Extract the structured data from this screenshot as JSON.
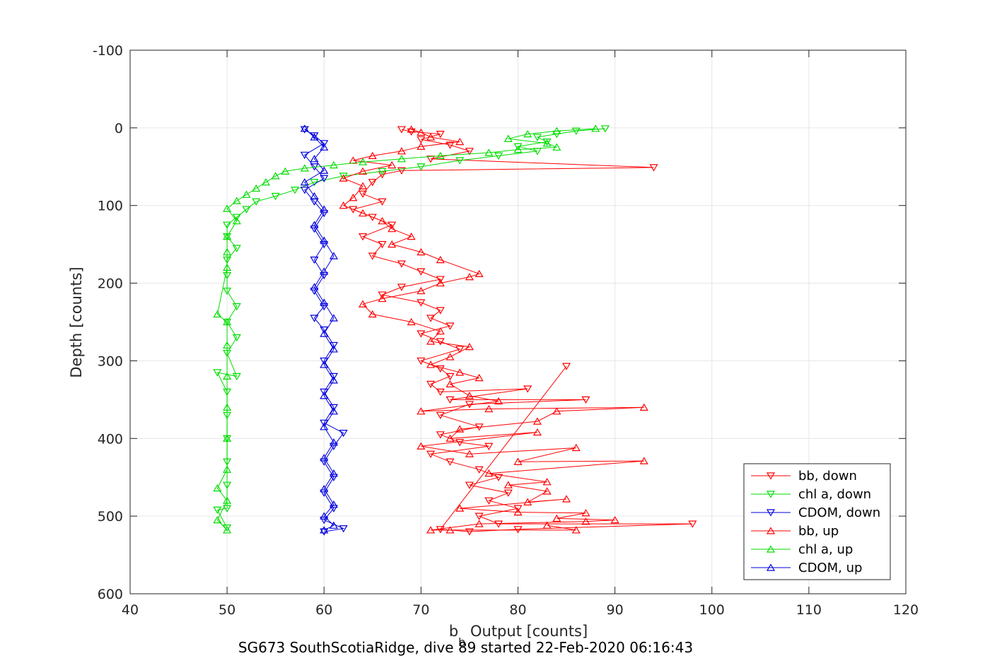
{
  "chart_data": {
    "type": "scatter",
    "title": "",
    "xlabel_main": "b",
    "xlabel_sub": "b",
    "xlabel_rest": " Output [counts]",
    "ylabel": "Depth [counts]",
    "caption": "SG673 SouthScotiaRidge, dive 89 started 22-Feb-2020 06:16:43",
    "xlim": [
      40,
      120
    ],
    "ylim": [
      -100,
      600
    ],
    "y_reversed": true,
    "grid": true,
    "x_ticks": [
      "40",
      "50",
      "60",
      "70",
      "80",
      "90",
      "100",
      "110",
      "120"
    ],
    "y_ticks": [
      "-100",
      "0",
      "100",
      "200",
      "300",
      "400",
      "500",
      "600"
    ],
    "legend_position": "bottom-right",
    "series": [
      {
        "name": "bb, down",
        "color": "#ff0000",
        "marker": "triangle-down",
        "points": [
          [
            68,
            2
          ],
          [
            69,
            5
          ],
          [
            72,
            8
          ],
          [
            70,
            15
          ],
          [
            73,
            22
          ],
          [
            75,
            30
          ],
          [
            71,
            40
          ],
          [
            94,
            51
          ],
          [
            68,
            55
          ],
          [
            66,
            60
          ],
          [
            65,
            70
          ],
          [
            64,
            85
          ],
          [
            66,
            95
          ],
          [
            63,
            105
          ],
          [
            65,
            115
          ],
          [
            67,
            125
          ],
          [
            64,
            140
          ],
          [
            66,
            150
          ],
          [
            65,
            165
          ],
          [
            68,
            175
          ],
          [
            70,
            185
          ],
          [
            72,
            195
          ],
          [
            68,
            205
          ],
          [
            66,
            215
          ],
          [
            70,
            225
          ],
          [
            72,
            235
          ],
          [
            71,
            245
          ],
          [
            73,
            255
          ],
          [
            70,
            265
          ],
          [
            72,
            275
          ],
          [
            74,
            285
          ],
          [
            70,
            300
          ],
          [
            72,
            310
          ],
          [
            73,
            320
          ],
          [
            71,
            330
          ],
          [
            72,
            340
          ],
          [
            81,
            336
          ],
          [
            73,
            350
          ],
          [
            87,
            350
          ],
          [
            75,
            356
          ],
          [
            72,
            370
          ],
          [
            76,
            385
          ],
          [
            72,
            395
          ],
          [
            74,
            405
          ],
          [
            77,
            410
          ],
          [
            71,
            420
          ],
          [
            73,
            430
          ],
          [
            76,
            440
          ],
          [
            78,
            450
          ],
          [
            75,
            460
          ],
          [
            79,
            470
          ],
          [
            77,
            480
          ],
          [
            80,
            490
          ],
          [
            76,
            500
          ],
          [
            78,
            510
          ],
          [
            98,
            510
          ],
          [
            80,
            517
          ],
          [
            75,
            520
          ],
          [
            72,
            517
          ],
          [
            85,
            307
          ]
        ]
      },
      {
        "name": "chl a, down",
        "color": "#00dd00",
        "marker": "triangle-down",
        "points": [
          [
            89,
            1
          ],
          [
            86,
            4
          ],
          [
            84,
            8
          ],
          [
            82,
            12
          ],
          [
            83,
            18
          ],
          [
            80,
            24
          ],
          [
            82,
            30
          ],
          [
            78,
            36
          ],
          [
            74,
            42
          ],
          [
            70,
            50
          ],
          [
            66,
            56
          ],
          [
            62,
            62
          ],
          [
            59,
            70
          ],
          [
            57,
            80
          ],
          [
            55,
            88
          ],
          [
            53,
            95
          ],
          [
            52,
            105
          ],
          [
            51,
            115
          ],
          [
            50,
            125
          ],
          [
            50,
            140
          ],
          [
            51,
            155
          ],
          [
            50,
            170
          ],
          [
            50,
            190
          ],
          [
            50,
            210
          ],
          [
            51,
            230
          ],
          [
            50,
            250
          ],
          [
            51,
            270
          ],
          [
            50,
            290
          ],
          [
            51,
            320
          ],
          [
            49,
            315
          ],
          [
            50,
            340
          ],
          [
            50,
            370
          ],
          [
            50,
            400
          ],
          [
            50,
            430
          ],
          [
            50,
            460
          ],
          [
            50,
            490
          ],
          [
            49,
            492
          ],
          [
            50,
            515
          ]
        ]
      },
      {
        "name": "CDOM, down",
        "color": "#0000dd",
        "marker": "triangle-down",
        "points": [
          [
            58,
            2
          ],
          [
            59,
            10
          ],
          [
            60,
            20
          ],
          [
            58,
            35
          ],
          [
            59,
            50
          ],
          [
            60,
            65
          ],
          [
            58,
            80
          ],
          [
            59,
            95
          ],
          [
            60,
            110
          ],
          [
            59,
            130
          ],
          [
            60,
            150
          ],
          [
            59,
            170
          ],
          [
            60,
            190
          ],
          [
            59,
            210
          ],
          [
            60,
            230
          ],
          [
            59,
            245
          ],
          [
            60,
            260
          ],
          [
            61,
            280
          ],
          [
            60,
            300
          ],
          [
            61,
            320
          ],
          [
            60,
            340
          ],
          [
            61,
            360
          ],
          [
            60,
            380
          ],
          [
            62,
            393
          ],
          [
            61,
            410
          ],
          [
            60,
            430
          ],
          [
            61,
            450
          ],
          [
            60,
            470
          ],
          [
            61,
            490
          ],
          [
            60,
            505
          ],
          [
            62,
            516
          ],
          [
            60,
            520
          ]
        ]
      },
      {
        "name": "bb, up",
        "color": "#ff0000",
        "marker": "triangle-up",
        "points": [
          [
            69,
            2
          ],
          [
            70,
            6
          ],
          [
            71,
            12
          ],
          [
            74,
            18
          ],
          [
            70,
            24
          ],
          [
            68,
            30
          ],
          [
            65,
            36
          ],
          [
            63,
            42
          ],
          [
            67,
            48
          ],
          [
            64,
            56
          ],
          [
            62,
            65
          ],
          [
            64,
            75
          ],
          [
            63,
            90
          ],
          [
            62,
            100
          ],
          [
            64,
            110
          ],
          [
            66,
            120
          ],
          [
            67,
            130
          ],
          [
            69,
            140
          ],
          [
            67,
            150
          ],
          [
            70,
            160
          ],
          [
            72,
            170
          ],
          [
            76,
            188
          ],
          [
            75,
            192
          ],
          [
            72,
            200
          ],
          [
            70,
            210
          ],
          [
            66,
            220
          ],
          [
            64,
            227
          ],
          [
            65,
            240
          ],
          [
            69,
            250
          ],
          [
            72,
            262
          ],
          [
            71,
            275
          ],
          [
            75,
            282
          ],
          [
            73,
            295
          ],
          [
            71,
            305
          ],
          [
            74,
            315
          ],
          [
            76,
            322
          ],
          [
            73,
            330
          ],
          [
            75,
            345
          ],
          [
            78,
            352
          ],
          [
            70,
            365
          ],
          [
            77,
            362
          ],
          [
            93,
            360
          ],
          [
            84,
            365
          ],
          [
            82,
            378
          ],
          [
            74,
            388
          ],
          [
            73,
            400
          ],
          [
            82,
            392
          ],
          [
            70,
            410
          ],
          [
            75,
            420
          ],
          [
            86,
            412
          ],
          [
            80,
            430
          ],
          [
            93,
            429
          ],
          [
            77,
            445
          ],
          [
            83,
            456
          ],
          [
            79,
            460
          ],
          [
            83,
            468
          ],
          [
            81,
            482
          ],
          [
            85,
            478
          ],
          [
            74,
            490
          ],
          [
            80,
            495
          ],
          [
            87,
            496
          ],
          [
            84,
            503
          ],
          [
            90,
            505
          ],
          [
            87,
            507
          ],
          [
            76,
            510
          ],
          [
            71,
            518
          ],
          [
            73,
            518
          ],
          [
            86,
            518
          ],
          [
            83,
            512
          ]
        ]
      },
      {
        "name": "chl a, up",
        "color": "#00dd00",
        "marker": "triangle-up",
        "points": [
          [
            88,
            1
          ],
          [
            84,
            4
          ],
          [
            81,
            8
          ],
          [
            79,
            14
          ],
          [
            83,
            20
          ],
          [
            84,
            25
          ],
          [
            80,
            28
          ],
          [
            77,
            32
          ],
          [
            72,
            36
          ],
          [
            68,
            40
          ],
          [
            64,
            44
          ],
          [
            61,
            48
          ],
          [
            58,
            52
          ],
          [
            56,
            56
          ],
          [
            55,
            62
          ],
          [
            54,
            70
          ],
          [
            53,
            78
          ],
          [
            52,
            86
          ],
          [
            51,
            94
          ],
          [
            50,
            104
          ],
          [
            51,
            120
          ],
          [
            50,
            140
          ],
          [
            50,
            160
          ],
          [
            50,
            180
          ],
          [
            49,
            240
          ],
          [
            50,
            250
          ],
          [
            50,
            280
          ],
          [
            50,
            320
          ],
          [
            50,
            360
          ],
          [
            50,
            400
          ],
          [
            50,
            440
          ],
          [
            49,
            464
          ],
          [
            50,
            480
          ],
          [
            49,
            505
          ],
          [
            50,
            518
          ]
        ]
      },
      {
        "name": "CDOM, up",
        "color": "#0000dd",
        "marker": "triangle-up",
        "points": [
          [
            58,
            1
          ],
          [
            59,
            12
          ],
          [
            60,
            25
          ],
          [
            59,
            40
          ],
          [
            60,
            55
          ],
          [
            58,
            70
          ],
          [
            59,
            88
          ],
          [
            60,
            105
          ],
          [
            59,
            125
          ],
          [
            60,
            145
          ],
          [
            61,
            165
          ],
          [
            60,
            185
          ],
          [
            59,
            205
          ],
          [
            60,
            225
          ],
          [
            61,
            245
          ],
          [
            60,
            265
          ],
          [
            61,
            285
          ],
          [
            60,
            305
          ],
          [
            61,
            325
          ],
          [
            60,
            345
          ],
          [
            61,
            365
          ],
          [
            60,
            385
          ],
          [
            61,
            405
          ],
          [
            60,
            425
          ],
          [
            61,
            445
          ],
          [
            60,
            465
          ],
          [
            61,
            485
          ],
          [
            60,
            500
          ],
          [
            61,
            512
          ],
          [
            60,
            518
          ]
        ]
      }
    ]
  }
}
